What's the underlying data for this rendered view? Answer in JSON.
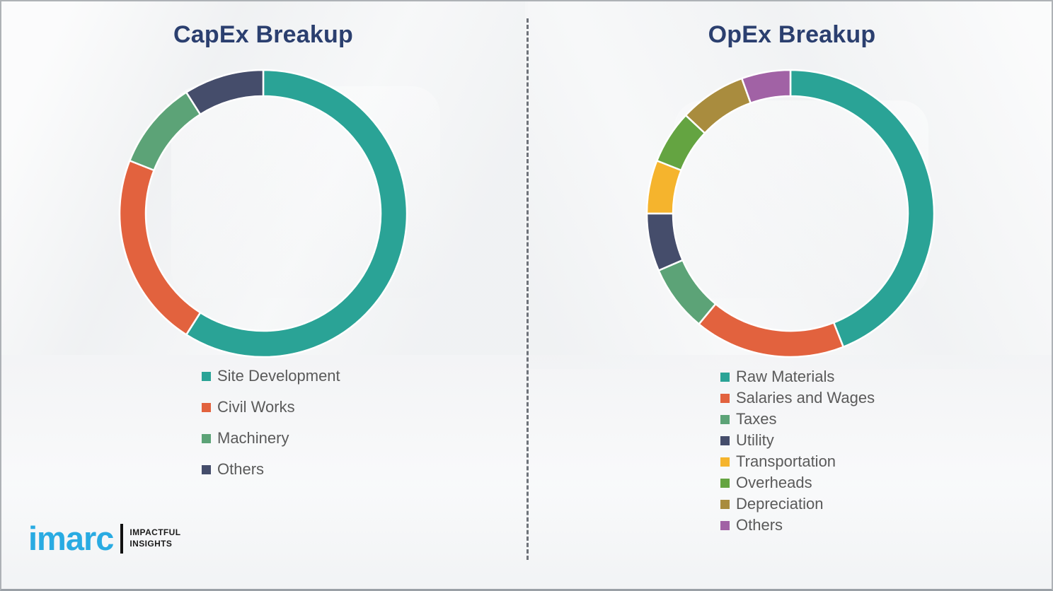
{
  "chart_data": [
    {
      "id": "capex",
      "type": "pie",
      "donut": true,
      "title": "CapEx Breakup",
      "categories": [
        "Site Development",
        "Civil Works",
        "Machinery",
        "Others"
      ],
      "values": [
        59,
        22,
        10,
        9
      ],
      "colors": [
        "#2AA396",
        "#E2623E",
        "#5CA377",
        "#454D6B"
      ],
      "legend_position": "below-left",
      "start_angle_deg": 0,
      "direction": "clockwise"
    },
    {
      "id": "opex",
      "type": "pie",
      "donut": true,
      "title": "OpEx Breakup",
      "categories": [
        "Raw Materials",
        "Salaries and Wages",
        "Taxes",
        "Utility",
        "Transportation",
        "Overheads",
        "Depreciation",
        "Others"
      ],
      "values": [
        44,
        17,
        7.5,
        6.5,
        6,
        6,
        7.5,
        5.5
      ],
      "colors": [
        "#2AA396",
        "#E2623E",
        "#5CA377",
        "#454D6B",
        "#F5B42D",
        "#64A441",
        "#A98C3E",
        "#A162A5"
      ],
      "legend_position": "below-left",
      "start_angle_deg": 0,
      "direction": "clockwise"
    }
  ],
  "logo": {
    "brand": "imarc",
    "tagline_line1": "IMPACTFUL",
    "tagline_line2": "INSIGHTS",
    "brand_color": "#29ABE2"
  },
  "colors": {
    "title_text": "#2B3F6F",
    "legend_text": "#5A5A5A",
    "divider": "#575C64",
    "segment_gap": "#FFFFFF"
  }
}
